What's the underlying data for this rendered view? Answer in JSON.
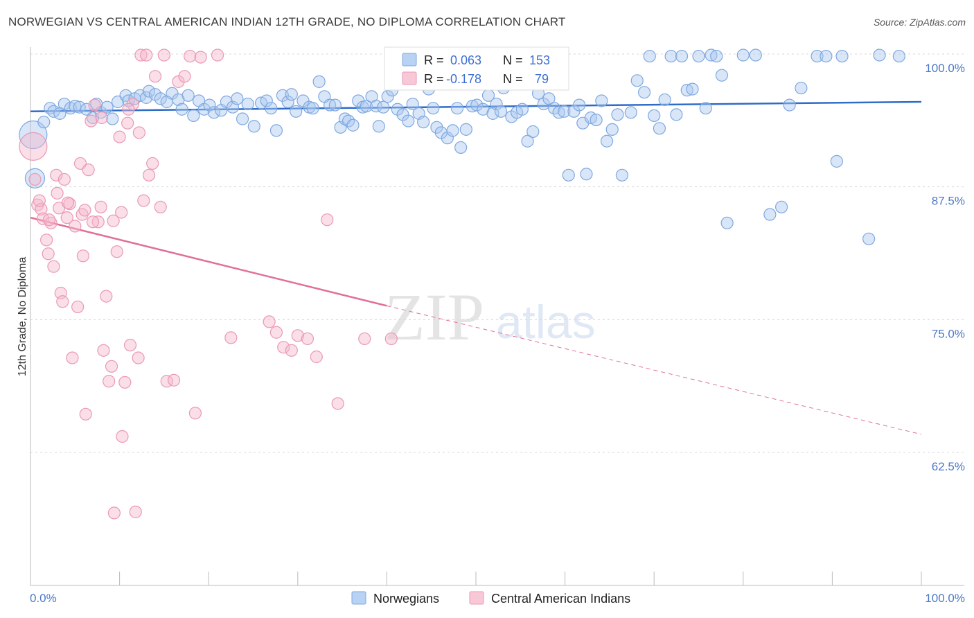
{
  "header": {
    "title": "NORWEGIAN VS CENTRAL AMERICAN INDIAN 12TH GRADE, NO DIPLOMA CORRELATION CHART",
    "source": "Source: ZipAtlas.com"
  },
  "watermark": {
    "zip": "ZIP",
    "atlas": "atlas"
  },
  "legend_box": {
    "rows": [
      {
        "r_label": "R =",
        "r_value": "0.063",
        "n_label": "N =",
        "n_value": "153",
        "color": "#a8c8f0"
      },
      {
        "r_label": "R =",
        "r_value": "-0.178",
        "n_label": "N =",
        "n_value": "79",
        "color": "#f5b8cb"
      }
    ]
  },
  "bottom_legend": [
    {
      "label": "Norwegians",
      "color": "#a8c8f0"
    },
    {
      "label": "Central American Indians",
      "color": "#f5b8cb"
    }
  ],
  "chart_data": {
    "type": "scatter",
    "title": "NORWEGIAN VS CENTRAL AMERICAN INDIAN 12TH GRADE, NO DIPLOMA CORRELATION CHART",
    "xlabel": "",
    "ylabel": "12th Grade, No Diploma",
    "xlim": [
      0,
      100
    ],
    "ylim": [
      52,
      101
    ],
    "x_tick_labels": [
      "0.0%",
      "100.0%"
    ],
    "y_ticks": [
      62.5,
      75.0,
      87.5,
      100.0
    ],
    "y_tick_labels": [
      "62.5%",
      "75.0%",
      "87.5%",
      "100.0%"
    ],
    "grid": "horizontal dashed",
    "legend": "top-center",
    "colors": {
      "norwegians": "#a8c8f0",
      "norwegians_line": "#2f6cc8",
      "cai": "#f5b8cb",
      "cai_line": "#e0709a"
    },
    "series": [
      {
        "name": "Norwegians",
        "trend": {
          "x": [
            0,
            100
          ],
          "y": [
            94.6,
            95.5
          ]
        },
        "points": [
          [
            0.3,
            92.4
          ],
          [
            0.5,
            88.3
          ],
          [
            1.5,
            93.6
          ],
          [
            2.2,
            94.9
          ],
          [
            2.6,
            94.6
          ],
          [
            3.3,
            94.4
          ],
          [
            3.8,
            95.3
          ],
          [
            4.5,
            94.9
          ],
          [
            5.0,
            95.1
          ],
          [
            5.5,
            95.0
          ],
          [
            6.3,
            94.8
          ],
          [
            7.0,
            94.0
          ],
          [
            7.4,
            95.3
          ],
          [
            7.9,
            94.5
          ],
          [
            8.6,
            95.0
          ],
          [
            9.2,
            93.9
          ],
          [
            9.8,
            95.5
          ],
          [
            10.7,
            96.1
          ],
          [
            11.0,
            95.6
          ],
          [
            11.7,
            95.8
          ],
          [
            12.3,
            96.1
          ],
          [
            13.0,
            95.9
          ],
          [
            13.3,
            96.5
          ],
          [
            14.0,
            96.2
          ],
          [
            14.6,
            95.8
          ],
          [
            15.3,
            95.5
          ],
          [
            15.9,
            96.3
          ],
          [
            16.6,
            95.7
          ],
          [
            17.0,
            94.8
          ],
          [
            17.7,
            96.1
          ],
          [
            18.3,
            94.2
          ],
          [
            18.9,
            95.6
          ],
          [
            19.5,
            94.8
          ],
          [
            20.1,
            95.2
          ],
          [
            20.6,
            94.5
          ],
          [
            21.4,
            94.7
          ],
          [
            22.0,
            95.5
          ],
          [
            22.7,
            95.0
          ],
          [
            23.2,
            95.8
          ],
          [
            23.8,
            93.9
          ],
          [
            24.4,
            95.3
          ],
          [
            25.1,
            93.2
          ],
          [
            25.9,
            95.4
          ],
          [
            26.5,
            95.6
          ],
          [
            27.0,
            94.9
          ],
          [
            27.6,
            92.8
          ],
          [
            28.3,
            96.1
          ],
          [
            28.9,
            95.5
          ],
          [
            29.3,
            96.2
          ],
          [
            29.8,
            94.6
          ],
          [
            30.6,
            95.6
          ],
          [
            31.3,
            95.0
          ],
          [
            31.7,
            94.9
          ],
          [
            32.4,
            97.4
          ],
          [
            33.0,
            96.0
          ],
          [
            33.6,
            95.2
          ],
          [
            34.2,
            95.2
          ],
          [
            34.8,
            93.1
          ],
          [
            35.3,
            93.9
          ],
          [
            35.7,
            93.7
          ],
          [
            36.2,
            93.3
          ],
          [
            36.8,
            95.6
          ],
          [
            37.3,
            95.0
          ],
          [
            37.7,
            95.1
          ],
          [
            38.3,
            96.0
          ],
          [
            38.8,
            95.1
          ],
          [
            39.1,
            93.2
          ],
          [
            39.6,
            95.0
          ],
          [
            40.1,
            96.0
          ],
          [
            40.6,
            96.6
          ],
          [
            41.2,
            94.8
          ],
          [
            41.8,
            94.3
          ],
          [
            42.4,
            93.7
          ],
          [
            42.9,
            95.3
          ],
          [
            43.6,
            94.4
          ],
          [
            44.1,
            93.6
          ],
          [
            44.7,
            96.7
          ],
          [
            45.2,
            94.9
          ],
          [
            45.6,
            93.1
          ],
          [
            46.1,
            92.6
          ],
          [
            46.8,
            92.1
          ],
          [
            47.4,
            92.8
          ],
          [
            47.9,
            94.9
          ],
          [
            48.3,
            91.2
          ],
          [
            48.9,
            92.9
          ],
          [
            49.6,
            95.1
          ],
          [
            50.1,
            95.2
          ],
          [
            50.8,
            94.8
          ],
          [
            51.4,
            96.1
          ],
          [
            51.9,
            94.4
          ],
          [
            52.3,
            95.3
          ],
          [
            52.8,
            94.6
          ],
          [
            53.1,
            96.8
          ],
          [
            54.0,
            94.1
          ],
          [
            54.6,
            94.5
          ],
          [
            55.2,
            94.8
          ],
          [
            55.8,
            91.8
          ],
          [
            56.4,
            92.7
          ],
          [
            57.0,
            96.3
          ],
          [
            57.6,
            95.3
          ],
          [
            58.2,
            95.8
          ],
          [
            58.8,
            94.9
          ],
          [
            59.3,
            94.5
          ],
          [
            59.9,
            94.6
          ],
          [
            60.4,
            88.6
          ],
          [
            61.0,
            94.6
          ],
          [
            61.6,
            95.2
          ],
          [
            62.0,
            93.5
          ],
          [
            62.4,
            88.7
          ],
          [
            62.9,
            94.0
          ],
          [
            63.5,
            93.8
          ],
          [
            64.1,
            95.6
          ],
          [
            64.7,
            91.8
          ],
          [
            65.3,
            92.9
          ],
          [
            65.9,
            94.3
          ],
          [
            66.4,
            88.6
          ],
          [
            67.4,
            94.5
          ],
          [
            68.1,
            97.5
          ],
          [
            68.9,
            96.4
          ],
          [
            69.5,
            99.8
          ],
          [
            70.0,
            94.2
          ],
          [
            70.6,
            93.0
          ],
          [
            71.2,
            95.7
          ],
          [
            71.9,
            99.8
          ],
          [
            72.5,
            94.3
          ],
          [
            73.1,
            99.8
          ],
          [
            73.7,
            96.6
          ],
          [
            74.3,
            96.7
          ],
          [
            75.0,
            99.8
          ],
          [
            75.8,
            94.9
          ],
          [
            76.4,
            99.9
          ],
          [
            77.0,
            99.8
          ],
          [
            77.6,
            98.0
          ],
          [
            78.2,
            84.1
          ],
          [
            80.0,
            99.9
          ],
          [
            81.4,
            99.9
          ],
          [
            83.0,
            84.9
          ],
          [
            84.3,
            85.6
          ],
          [
            85.2,
            95.2
          ],
          [
            86.5,
            96.8
          ],
          [
            88.3,
            99.8
          ],
          [
            89.3,
            99.8
          ],
          [
            90.5,
            89.9
          ],
          [
            91.1,
            99.8
          ],
          [
            94.1,
            82.6
          ],
          [
            95.3,
            99.9
          ],
          [
            97.5,
            99.8
          ]
        ]
      },
      {
        "name": "Central American Indians",
        "trend": {
          "x": [
            0,
            40
          ],
          "y": [
            84.6,
            76.3
          ]
        },
        "trend_extended": {
          "x": [
            40,
            100
          ],
          "y": [
            76.3,
            64.2
          ]
        },
        "points": [
          [
            0.3,
            91.3
          ],
          [
            0.5,
            88.2
          ],
          [
            0.8,
            85.8
          ],
          [
            1.2,
            85.4
          ],
          [
            1.4,
            84.5
          ],
          [
            1.8,
            82.5
          ],
          [
            2.0,
            81.2
          ],
          [
            2.3,
            84.1
          ],
          [
            2.6,
            80.0
          ],
          [
            2.9,
            88.6
          ],
          [
            3.2,
            85.5
          ],
          [
            3.4,
            77.5
          ],
          [
            3.6,
            76.7
          ],
          [
            3.8,
            88.2
          ],
          [
            4.1,
            84.6
          ],
          [
            4.4,
            85.9
          ],
          [
            4.7,
            71.4
          ],
          [
            5.0,
            83.8
          ],
          [
            5.3,
            76.2
          ],
          [
            5.6,
            89.7
          ],
          [
            5.9,
            81.0
          ],
          [
            6.2,
            66.1
          ],
          [
            6.5,
            89.1
          ],
          [
            6.8,
            93.7
          ],
          [
            7.2,
            95.2
          ],
          [
            7.6,
            84.2
          ],
          [
            7.9,
            85.6
          ],
          [
            8.2,
            72.1
          ],
          [
            8.5,
            77.2
          ],
          [
            8.8,
            69.2
          ],
          [
            9.1,
            70.6
          ],
          [
            9.4,
            56.8
          ],
          [
            9.7,
            81.4
          ],
          [
            10.0,
            92.2
          ],
          [
            10.3,
            64.0
          ],
          [
            10.6,
            69.1
          ],
          [
            10.9,
            93.5
          ],
          [
            11.2,
            72.6
          ],
          [
            11.5,
            95.3
          ],
          [
            11.8,
            56.9
          ],
          [
            12.1,
            71.4
          ],
          [
            12.4,
            99.9
          ],
          [
            12.7,
            86.2
          ],
          [
            13.0,
            99.9
          ],
          [
            13.3,
            88.6
          ],
          [
            13.7,
            89.7
          ],
          [
            14.0,
            97.9
          ],
          [
            14.6,
            85.6
          ],
          [
            15.0,
            99.9
          ],
          [
            15.3,
            69.2
          ],
          [
            16.1,
            69.3
          ],
          [
            16.6,
            97.4
          ],
          [
            17.3,
            97.9
          ],
          [
            17.9,
            99.8
          ],
          [
            18.5,
            66.2
          ],
          [
            19.1,
            99.7
          ],
          [
            21.0,
            99.9
          ],
          [
            22.5,
            73.3
          ],
          [
            26.8,
            74.8
          ],
          [
            27.6,
            73.8
          ],
          [
            28.4,
            72.4
          ],
          [
            29.3,
            72.1
          ],
          [
            30.0,
            73.5
          ],
          [
            31.1,
            73.2
          ],
          [
            32.1,
            71.5
          ],
          [
            33.3,
            84.4
          ],
          [
            34.5,
            67.1
          ],
          [
            37.5,
            73.2
          ],
          [
            40.5,
            73.2
          ],
          [
            1.0,
            86.2
          ],
          [
            2.1,
            84.4
          ],
          [
            3.0,
            86.9
          ],
          [
            4.2,
            86.0
          ],
          [
            5.8,
            84.9
          ],
          [
            6.1,
            85.3
          ],
          [
            7.0,
            84.2
          ],
          [
            8.0,
            94.0
          ],
          [
            9.3,
            84.3
          ],
          [
            10.2,
            85.1
          ],
          [
            11.0,
            94.8
          ],
          [
            12.2,
            92.6
          ]
        ]
      }
    ]
  }
}
